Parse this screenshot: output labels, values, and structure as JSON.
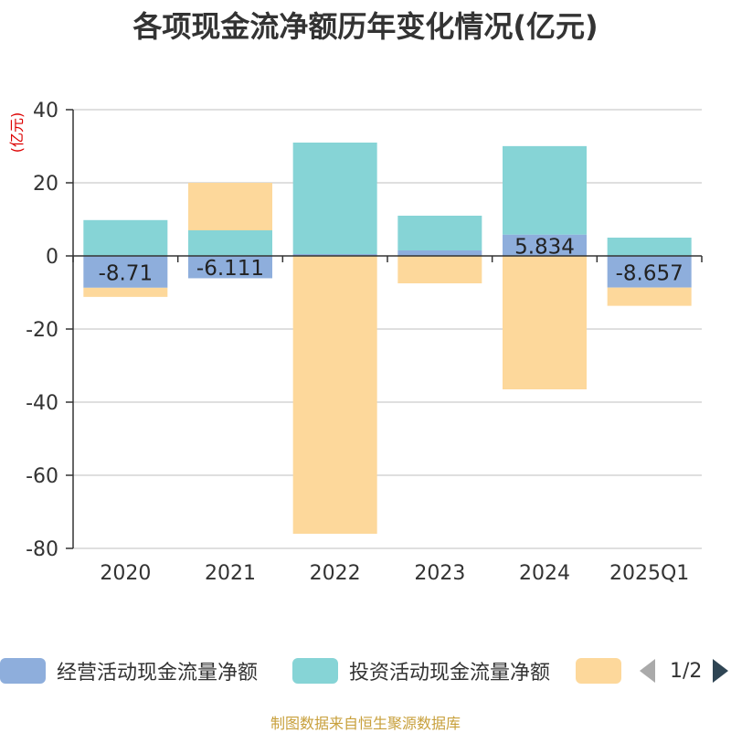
{
  "title": "各项现金流净额历年变化情况(亿元)",
  "source": "制图数据来自恒生聚源数据库",
  "pager": {
    "indicator": "1/2"
  },
  "colors": {
    "operating": "#8eaedc",
    "investing": "#86d4d6",
    "financing": "#fdd89b",
    "axis": "#333333",
    "grid": "#cccccc",
    "ylabel": "#dd0000"
  },
  "chart_data": {
    "type": "bar",
    "stacked": true,
    "categories": [
      "2020",
      "2021",
      "2022",
      "2023",
      "2024",
      "2025Q1"
    ],
    "ylabel": "(亿元)",
    "ylim": [
      -80,
      40
    ],
    "yticks": [
      40,
      20,
      0,
      -20,
      -40,
      -60,
      -80
    ],
    "grid": true,
    "legend_position": "bottom",
    "series": [
      {
        "name": "经营活动现金流量净额",
        "color": "#8eaedc",
        "values": [
          -8.71,
          -6.111,
          0.5,
          1.5,
          5.834,
          -8.657
        ],
        "labels": [
          "-8.71",
          "-6.111",
          "",
          "",
          "5.834",
          "-8.657"
        ]
      },
      {
        "name": "投资活动现金流量净额",
        "color": "#86d4d6",
        "values": [
          9.8,
          7,
          30.5,
          9.5,
          24.2,
          5
        ],
        "labels": []
      },
      {
        "name": "",
        "color": "#fdd89b",
        "values": [
          -2.5,
          13,
          -76,
          -7.5,
          -36.5,
          -5
        ],
        "labels": []
      }
    ]
  }
}
